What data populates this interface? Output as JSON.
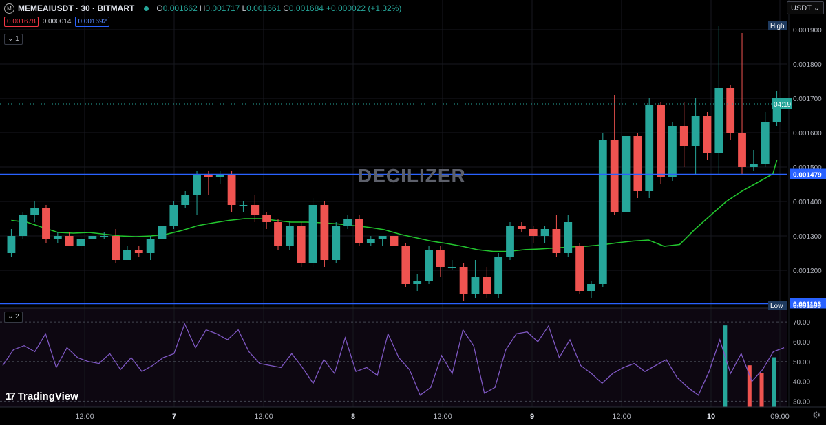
{
  "header": {
    "symbol": "MEMEAIUSDT · 30 · BITMART",
    "coin_icon": "meme-coin-icon",
    "status_color": "#26a69a",
    "open_key": "O",
    "open": "0.001662",
    "high_key": "H",
    "high": "0.001717",
    "low_key": "L",
    "low": "0.001661",
    "close_key": "C",
    "close": "0.001684",
    "change": "+0.000022 (+1.32%)",
    "sell": "0.001678",
    "spread": "0.000014",
    "buy": "0.001692",
    "pane1_toggle": "1",
    "pane2_toggle": "2"
  },
  "currency_button": "USDT",
  "watermark": "DECILIZER",
  "branding": "TradingView",
  "settings_icon": "gear-icon",
  "colors": {
    "up": "#26a69a",
    "down": "#ef5350",
    "ma": "#22c52e",
    "rsi": "#7e57c2",
    "level": "#2962ff"
  },
  "chart_data": [
    {
      "type": "candlestick",
      "symbol": "MEMEAIUSDT",
      "interval": "30",
      "exchange": "BITMART",
      "x_ticks": [
        "12:00",
        "7",
        "12:00",
        "8",
        "12:00",
        "9",
        "12:00",
        "10",
        "09:00"
      ],
      "y_ticks": [
        "0.001200",
        "0.001300",
        "0.001400",
        "0.001500",
        "0.001600",
        "0.001700",
        "0.001800",
        "0.001900"
      ],
      "ylim": [
        0.00109,
        0.00195
      ],
      "horizontal_levels": [
        0.001479,
        0.001103
      ],
      "level_labels": [
        "0.001479",
        "0.001103"
      ],
      "current_price": 0.001684,
      "current_price_label": "04:19",
      "high_label": "High",
      "high_value": "0.001900",
      "low_label": "Low",
      "low_value": "0.001100",
      "moving_average": [
        [
          0,
          0.001345
        ],
        [
          1,
          0.00134
        ],
        [
          2,
          0.001325
        ],
        [
          3,
          0.00131
        ],
        [
          4,
          0.001308
        ],
        [
          5,
          0.00131
        ],
        [
          6,
          0.001305
        ],
        [
          7,
          0.0013
        ],
        [
          8,
          0.001298
        ],
        [
          9,
          0.0013
        ],
        [
          10,
          0.001305
        ],
        [
          11,
          0.001316
        ],
        [
          12,
          0.00133
        ],
        [
          13,
          0.001338
        ],
        [
          14,
          0.001345
        ],
        [
          15,
          0.00135
        ],
        [
          16,
          0.00135
        ],
        [
          17,
          0.001345
        ],
        [
          18,
          0.00134
        ],
        [
          19,
          0.00134
        ],
        [
          20,
          0.001338
        ],
        [
          21,
          0.001335
        ],
        [
          22,
          0.00133
        ],
        [
          23,
          0.001325
        ],
        [
          24,
          0.001318
        ],
        [
          25,
          0.001305
        ],
        [
          26,
          0.001295
        ],
        [
          27,
          0.001285
        ],
        [
          28,
          0.001278
        ],
        [
          29,
          0.00127
        ],
        [
          30,
          0.00126
        ],
        [
          31,
          0.001255
        ],
        [
          32,
          0.001255
        ],
        [
          33,
          0.00126
        ],
        [
          34,
          0.001262
        ],
        [
          35,
          0.001265
        ],
        [
          36,
          0.001268
        ],
        [
          37,
          0.00127
        ],
        [
          38,
          0.001274
        ],
        [
          39,
          0.00128
        ],
        [
          40,
          0.001285
        ],
        [
          41,
          0.001288
        ],
        [
          42,
          0.00127
        ],
        [
          43,
          0.001275
        ],
        [
          44,
          0.00132
        ],
        [
          45,
          0.00136
        ],
        [
          46,
          0.0014
        ],
        [
          47,
          0.00143
        ],
        [
          48,
          0.001455
        ],
        [
          49,
          0.00148
        ],
        [
          50,
          0.00152
        ]
      ],
      "candles": [
        [
          0,
          0.00125,
          0.00132,
          0.00124,
          0.0013
        ],
        [
          1,
          0.0013,
          0.00137,
          0.00129,
          0.00136
        ],
        [
          2,
          0.00136,
          0.0014,
          0.00134,
          0.00138
        ],
        [
          3,
          0.00138,
          0.00139,
          0.00128,
          0.00129
        ],
        [
          4,
          0.00129,
          0.00131,
          0.00128,
          0.0013
        ],
        [
          5,
          0.0013,
          0.00131,
          0.00127,
          0.00127
        ],
        [
          6,
          0.00127,
          0.0013,
          0.00126,
          0.00129
        ],
        [
          7,
          0.00129,
          0.0013,
          0.00129,
          0.0013
        ],
        [
          8,
          0.0013,
          0.00131,
          0.00129,
          0.0013
        ],
        [
          9,
          0.0013,
          0.00132,
          0.00122,
          0.00123
        ],
        [
          10,
          0.00123,
          0.00127,
          0.00123,
          0.00126
        ],
        [
          11,
          0.00126,
          0.00127,
          0.00124,
          0.00125
        ],
        [
          12,
          0.00125,
          0.0013,
          0.00123,
          0.00129
        ],
        [
          13,
          0.00129,
          0.00134,
          0.00128,
          0.00133
        ],
        [
          14,
          0.00133,
          0.0014,
          0.00132,
          0.00139
        ],
        [
          15,
          0.00139,
          0.00143,
          0.00138,
          0.00142
        ],
        [
          16,
          0.00142,
          0.00149,
          0.00136,
          0.00148
        ],
        [
          17,
          0.00148,
          0.00149,
          0.00142,
          0.00147
        ],
        [
          18,
          0.00147,
          0.00149,
          0.00145,
          0.00148
        ],
        [
          19,
          0.00148,
          0.00149,
          0.00137,
          0.00139
        ],
        [
          20,
          0.00139,
          0.0014,
          0.00137,
          0.00139
        ],
        [
          21,
          0.00139,
          0.00142,
          0.00134,
          0.00136
        ],
        [
          22,
          0.00136,
          0.00137,
          0.00132,
          0.00134
        ],
        [
          23,
          0.00134,
          0.00135,
          0.00126,
          0.00127
        ],
        [
          24,
          0.00127,
          0.00134,
          0.00126,
          0.00133
        ],
        [
          25,
          0.00133,
          0.00134,
          0.00121,
          0.00122
        ],
        [
          26,
          0.00122,
          0.00141,
          0.00121,
          0.00139
        ],
        [
          27,
          0.00139,
          0.0014,
          0.00121,
          0.00123
        ],
        [
          28,
          0.00123,
          0.00134,
          0.00122,
          0.00133
        ],
        [
          29,
          0.00133,
          0.00136,
          0.00132,
          0.00135
        ],
        [
          30,
          0.00135,
          0.00136,
          0.00127,
          0.00128
        ],
        [
          31,
          0.00128,
          0.0013,
          0.00127,
          0.00129
        ],
        [
          32,
          0.00129,
          0.0013,
          0.00127,
          0.0013
        ],
        [
          33,
          0.0013,
          0.00131,
          0.00126,
          0.00127
        ],
        [
          34,
          0.00127,
          0.00128,
          0.00115,
          0.00116
        ],
        [
          35,
          0.00116,
          0.00119,
          0.00114,
          0.00117
        ],
        [
          36,
          0.00117,
          0.00127,
          0.00116,
          0.00126
        ],
        [
          37,
          0.00126,
          0.00127,
          0.00118,
          0.00121
        ],
        [
          38,
          0.00121,
          0.00123,
          0.0012,
          0.00121
        ],
        [
          39,
          0.00121,
          0.00122,
          0.00111,
          0.00113
        ],
        [
          40,
          0.00113,
          0.00123,
          0.00112,
          0.00118
        ],
        [
          41,
          0.00118,
          0.00121,
          0.00112,
          0.00113
        ],
        [
          42,
          0.00113,
          0.00125,
          0.00112,
          0.00124
        ],
        [
          43,
          0.00124,
          0.00134,
          0.00123,
          0.00133
        ],
        [
          44,
          0.00133,
          0.00134,
          0.00131,
          0.00132
        ],
        [
          45,
          0.00132,
          0.00133,
          0.00128,
          0.0013
        ],
        [
          46,
          0.0013,
          0.00133,
          0.00128,
          0.00132
        ],
        [
          47,
          0.00132,
          0.00136,
          0.00124,
          0.00125
        ],
        [
          48,
          0.00125,
          0.00136,
          0.00124,
          0.00134
        ],
        [
          49,
          0.00127,
          0.00128,
          0.00113,
          0.00114
        ],
        [
          50,
          0.00114,
          0.00117,
          0.00112,
          0.00116
        ],
        [
          51,
          0.00116,
          0.0016,
          0.00115,
          0.00158
        ],
        [
          52,
          0.00158,
          0.00171,
          0.00136,
          0.00137
        ],
        [
          53,
          0.00137,
          0.0016,
          0.00135,
          0.00159
        ],
        [
          54,
          0.00159,
          0.0016,
          0.00141,
          0.00143
        ],
        [
          55,
          0.00143,
          0.0017,
          0.00141,
          0.00168
        ],
        [
          56,
          0.00168,
          0.00169,
          0.00145,
          0.00147
        ],
        [
          57,
          0.00147,
          0.00163,
          0.00146,
          0.00162
        ],
        [
          58,
          0.00162,
          0.00169,
          0.0015,
          0.00156
        ],
        [
          59,
          0.00156,
          0.0017,
          0.00148,
          0.00165
        ],
        [
          60,
          0.00165,
          0.00166,
          0.00152,
          0.00154
        ],
        [
          61,
          0.00154,
          0.00191,
          0.00148,
          0.00173
        ],
        [
          62,
          0.00173,
          0.00174,
          0.00158,
          0.0016
        ],
        [
          63,
          0.0016,
          0.00189,
          0.00148,
          0.0015
        ],
        [
          64,
          0.0015,
          0.00155,
          0.00149,
          0.00151
        ],
        [
          65,
          0.00151,
          0.00166,
          0.0015,
          0.00163
        ],
        [
          66,
          0.00163,
          0.00172,
          0.00162,
          0.00168
        ]
      ]
    },
    {
      "type": "line",
      "title": "2",
      "series": [
        {
          "values": [
            48,
            56,
            58,
            55,
            64,
            47,
            57,
            52,
            50,
            49,
            54,
            46,
            52,
            45,
            48,
            52,
            54,
            69,
            57,
            66,
            64,
            61,
            66,
            55,
            49,
            48,
            47,
            54,
            47,
            39,
            51,
            44,
            62,
            45,
            47,
            43,
            64,
            52,
            46,
            33,
            37,
            53,
            44,
            66,
            58,
            34,
            37,
            56,
            64,
            65,
            60,
            68,
            52,
            61,
            48,
            44,
            39,
            44,
            47,
            49,
            45,
            48,
            51,
            42,
            37,
            33,
            45,
            61,
            44,
            54,
            40,
            46,
            55,
            57
          ]
        }
      ],
      "volume_up": [
        0,
        0,
        0,
        0,
        0,
        0,
        0,
        0,
        0,
        0,
        0,
        0,
        0,
        0,
        0,
        0,
        0,
        0,
        0,
        0,
        0,
        0,
        0,
        0,
        0,
        0,
        0,
        0,
        0,
        0,
        0,
        0,
        0,
        0,
        0,
        0,
        0,
        0,
        0,
        0,
        0,
        0,
        0,
        0,
        0,
        0,
        0,
        0,
        0,
        0,
        0,
        0,
        0,
        0,
        0,
        0,
        0,
        0,
        0,
        38,
        0,
        0,
        0,
        22
      ],
      "volume_down": [
        0,
        0,
        0,
        0,
        0,
        0,
        0,
        0,
        0,
        0,
        0,
        0,
        0,
        0,
        0,
        0,
        0,
        0,
        0,
        0,
        0,
        0,
        0,
        0,
        0,
        0,
        0,
        0,
        0,
        0,
        0,
        0,
        0,
        0,
        0,
        0,
        0,
        0,
        0,
        0,
        0,
        0,
        0,
        0,
        0,
        0,
        0,
        0,
        0,
        0,
        0,
        0,
        0,
        0,
        0,
        0,
        0,
        0,
        0,
        0,
        0,
        18,
        14,
        0
      ],
      "y_ticks": [
        "30.00",
        "40.00",
        "50.00",
        "60.00",
        "70.00"
      ],
      "ylim": [
        27,
        77
      ],
      "reference_lines": [
        30,
        50,
        70
      ]
    }
  ]
}
